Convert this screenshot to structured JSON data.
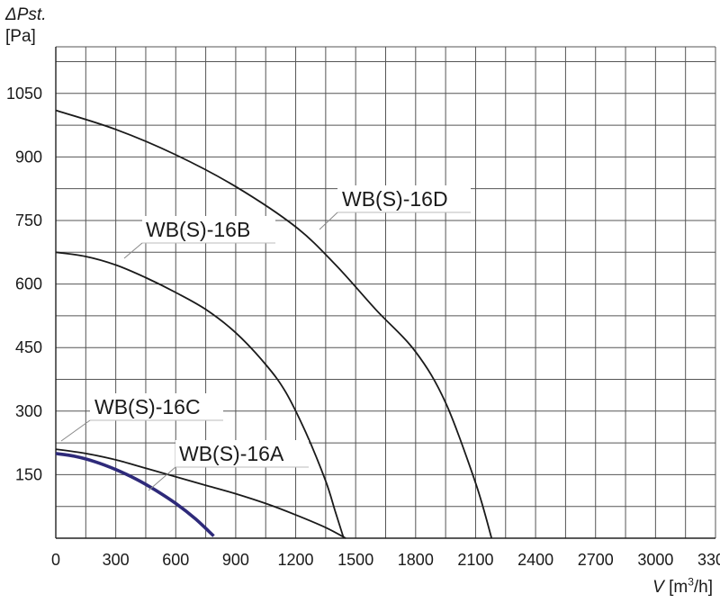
{
  "chart_data": {
    "type": "line",
    "title": "",
    "ylabel_symbol": "ΔPst.",
    "ylabel_unit": "[Pa]",
    "xlabel_var": "V",
    "xlabel_unit_pre": " [m",
    "xlabel_unit_sup": "3",
    "xlabel_unit_post": "/h]",
    "xlim": [
      0,
      3300
    ],
    "ylim": [
      0,
      1160
    ],
    "x_ticks": [
      0,
      300,
      600,
      900,
      1200,
      1500,
      1800,
      2100,
      2400,
      2700,
      3000,
      3300
    ],
    "x_tick_labels": [
      "0",
      "300",
      "600",
      "900",
      "1200",
      "1500",
      "1800",
      "2100",
      "2400",
      "2700",
      "3000",
      "3300"
    ],
    "y_ticks": [
      150,
      300,
      450,
      600,
      750,
      900,
      1050
    ],
    "y_tick_labels": [
      "150",
      "300",
      "450",
      "600",
      "750",
      "900",
      "1050"
    ],
    "x_grid_step": 150,
    "y_grid_step": 75,
    "grid": true,
    "legend": "none (curves labeled directly)",
    "series": [
      {
        "name": "WB(S)-16A",
        "color": "#2e2a7a",
        "x": [
          0,
          100,
          200,
          300,
          400,
          500,
          600,
          700,
          790
        ],
        "y": [
          200,
          193,
          180,
          162,
          140,
          113,
          82,
          45,
          5
        ]
      },
      {
        "name": "WB(S)-16C",
        "color": "#1a1a1a",
        "x": [
          0,
          150,
          300,
          450,
          600,
          750,
          900,
          1050,
          1200,
          1350,
          1450
        ],
        "y": [
          210,
          200,
          185,
          165,
          145,
          125,
          105,
          82,
          55,
          25,
          0
        ]
      },
      {
        "name": "WB(S)-16B",
        "color": "#1a1a1a",
        "x": [
          0,
          150,
          300,
          450,
          600,
          750,
          900,
          1050,
          1150,
          1250,
          1350,
          1400,
          1440
        ],
        "y": [
          675,
          665,
          645,
          615,
          580,
          540,
          485,
          410,
          345,
          250,
          135,
          60,
          0
        ]
      },
      {
        "name": "WB(S)-16D",
        "color": "#1a1a1a",
        "x": [
          0,
          300,
          600,
          900,
          1200,
          1400,
          1600,
          1800,
          1950,
          2100,
          2180
        ],
        "y": [
          1010,
          965,
          905,
          830,
          735,
          645,
          540,
          440,
          320,
          130,
          0
        ]
      }
    ],
    "annotations": [
      {
        "text": "WB(S)-16A",
        "series": "WB(S)-16A"
      },
      {
        "text": "WB(S)-16C",
        "series": "WB(S)-16C"
      },
      {
        "text": "WB(S)-16B",
        "series": "WB(S)-16B"
      },
      {
        "text": "WB(S)-16D",
        "series": "WB(S)-16D"
      }
    ]
  }
}
